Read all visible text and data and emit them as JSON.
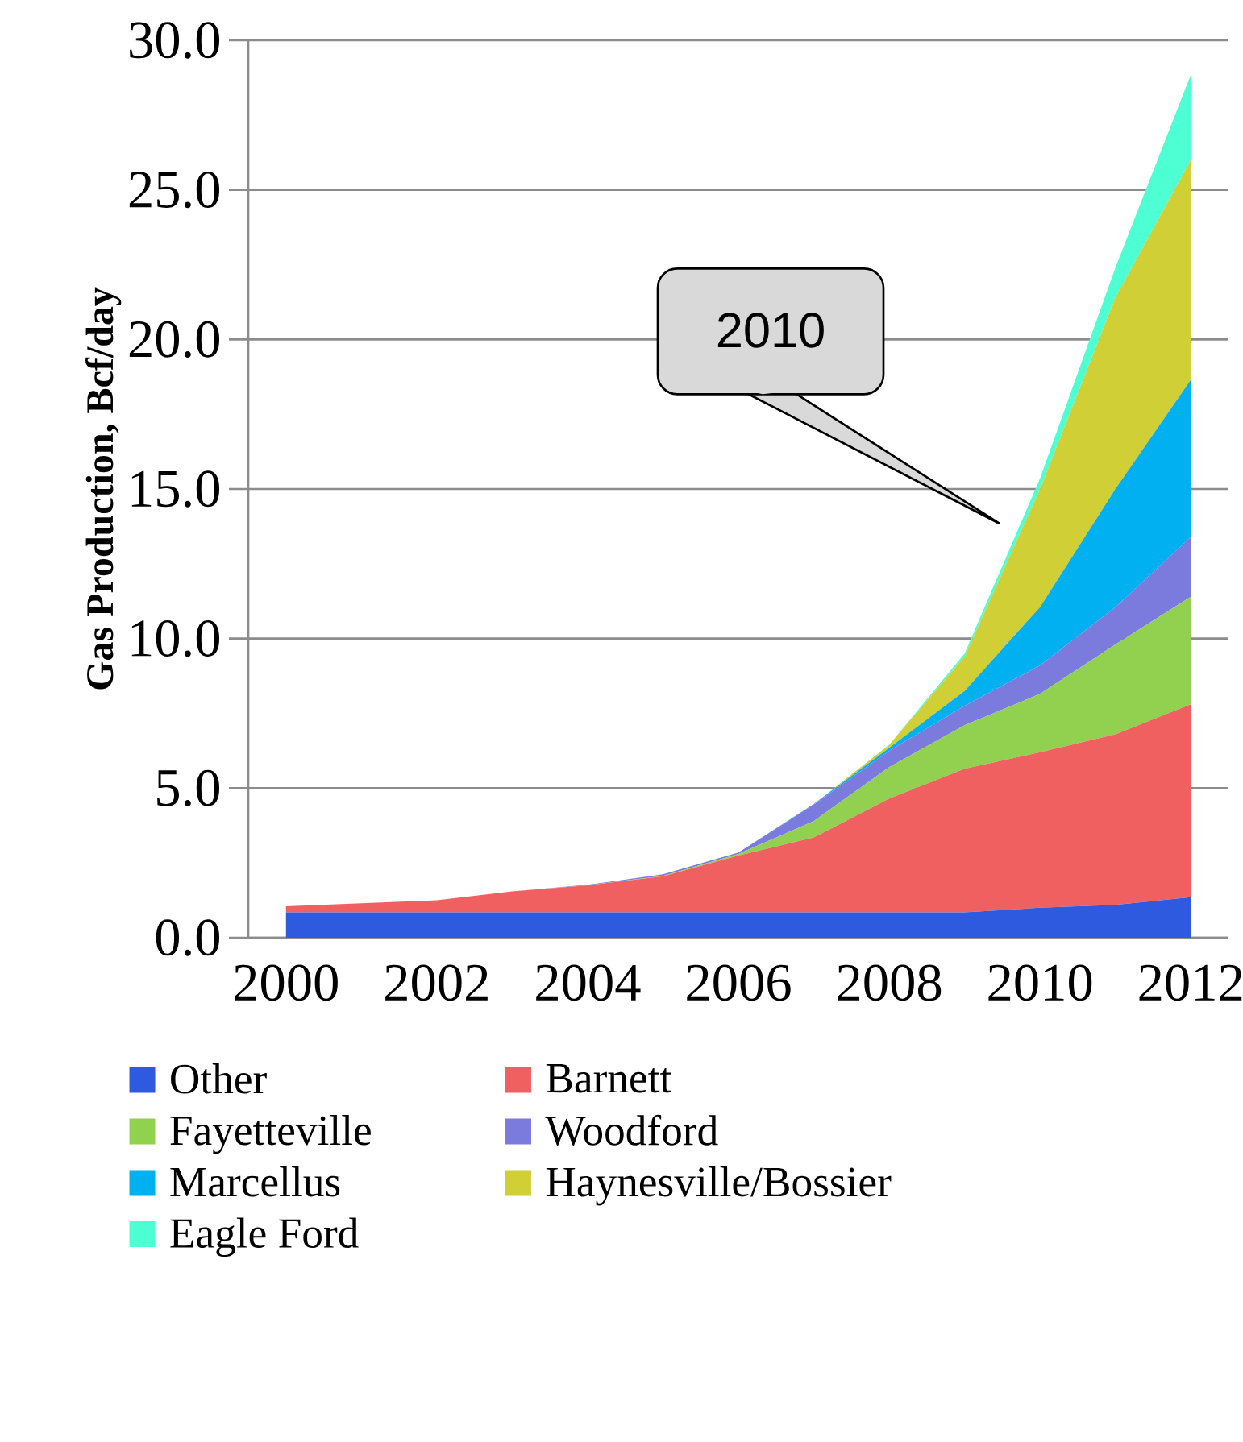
{
  "chart_data": {
    "type": "area",
    "stacked": true,
    "ylabel": "Gas Production, Bcf/day",
    "categories": [
      "2000",
      null,
      "2002",
      null,
      "2004",
      null,
      "2006",
      null,
      "2008",
      null,
      "2010",
      null,
      "2012"
    ],
    "series": [
      {
        "name": "Other",
        "color": "#2e5adf",
        "values": [
          0.85,
          0.85,
          0.85,
          0.85,
          0.85,
          0.85,
          0.85,
          0.85,
          0.85,
          0.85,
          1.0,
          1.1,
          1.35
        ]
      },
      {
        "name": "Barnett",
        "color": "#f06060",
        "values": [
          0.2,
          0.3,
          0.4,
          0.7,
          0.9,
          1.2,
          1.9,
          2.5,
          3.8,
          4.8,
          5.2,
          5.7,
          6.45
        ]
      },
      {
        "name": "Fayetteville",
        "color": "#92d050",
        "values": [
          0,
          0,
          0,
          0,
          0,
          0.02,
          0.05,
          0.55,
          1.05,
          1.45,
          1.95,
          3.0,
          3.6
        ]
      },
      {
        "name": "Woodford",
        "color": "#7b7bde",
        "values": [
          0,
          0,
          0,
          0,
          0.02,
          0.05,
          0.05,
          0.55,
          0.55,
          0.65,
          0.95,
          1.25,
          2.0
        ]
      },
      {
        "name": "Marcellus",
        "color": "#00b0f0",
        "values": [
          0,
          0,
          0,
          0,
          0,
          0,
          0,
          0.02,
          0.1,
          0.5,
          1.95,
          3.95,
          5.25
        ]
      },
      {
        "name": "Haynesville/Bossier",
        "color": "#d0cf36",
        "values": [
          0,
          0,
          0,
          0,
          0,
          0,
          0,
          0,
          0.1,
          1.15,
          3.95,
          6.4,
          7.35
        ]
      },
      {
        "name": "Eagle Ford",
        "color": "#4dffd2",
        "values": [
          0,
          0,
          0,
          0,
          0,
          0,
          0,
          0,
          0,
          0.1,
          0.35,
          1.0,
          2.85
        ]
      }
    ],
    "ylim": [
      0,
      30
    ],
    "yticks": [
      {
        "value": 0,
        "label": "0.0"
      },
      {
        "value": 5,
        "label": "5.0"
      },
      {
        "value": 10,
        "label": "10.0"
      },
      {
        "value": 15,
        "label": "15.0"
      },
      {
        "value": 20,
        "label": "20.0"
      },
      {
        "value": 25,
        "label": "25.0"
      },
      {
        "value": 30,
        "label": "30.0"
      }
    ],
    "grid": "y",
    "legend": "bottom",
    "annotations": [
      "2010"
    ]
  }
}
